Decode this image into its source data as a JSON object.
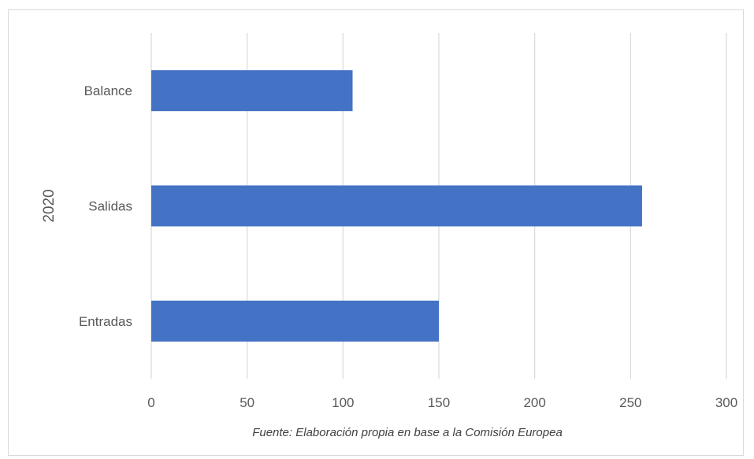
{
  "chart_data": {
    "type": "bar",
    "orientation": "horizontal",
    "group_label": "2020",
    "categories": [
      "Balance",
      "Salidas",
      "Entradas"
    ],
    "values": [
      105,
      256,
      150
    ],
    "xlim": [
      0,
      300
    ],
    "x_ticks": [
      0,
      50,
      100,
      150,
      200,
      250,
      300
    ],
    "grid": "vertical",
    "bar_color": "#4472C4",
    "source_note": "Fuente: Elaboración propia en base a la Comisión Europea"
  }
}
